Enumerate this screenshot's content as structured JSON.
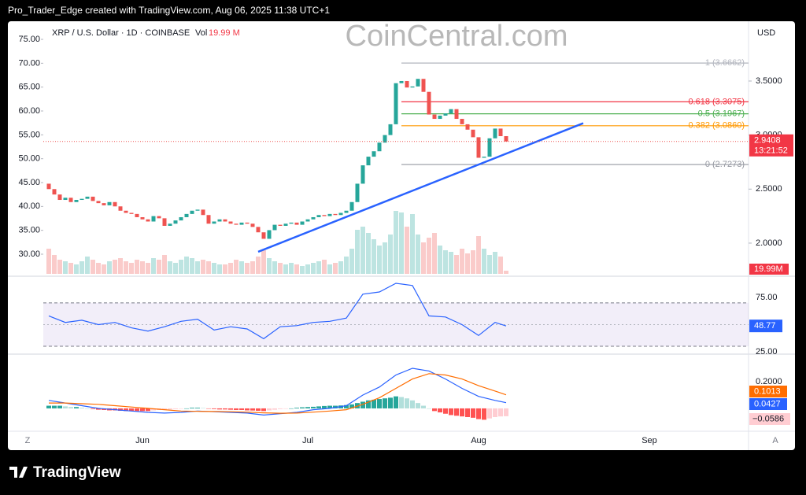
{
  "header": {
    "text": "Pro_Trader_Edge created with TradingView.com, Aug 06, 2025 11:38 UTC+1"
  },
  "footer": {
    "brand": "TradingView"
  },
  "chart_data": {
    "type": "candlestick",
    "legend_title": "XRP / U.S. Dollar · 1D · COINBASE",
    "watermark": "CoinCentral.com",
    "currency": "USD",
    "corner_labels": [
      "Z",
      "A"
    ],
    "xlim": [
      -1,
      127
    ],
    "xticks": [
      {
        "value": 17,
        "label": "Jun"
      },
      {
        "value": 47,
        "label": "Jul"
      },
      {
        "value": 78,
        "label": "Aug"
      },
      {
        "value": 109,
        "label": "Sep"
      }
    ],
    "ylim": [
      1.701,
      4.046
    ],
    "yticks": [
      {
        "value": 2,
        "label": "2.0000"
      },
      {
        "value": 2.5,
        "label": "2.5000"
      },
      {
        "value": 3,
        "label": "3.0000"
      },
      {
        "value": 3.5,
        "label": "3.5000"
      }
    ],
    "y2lim": [
      25.55,
      78.63
    ],
    "y2ticks": [
      {
        "value": 30,
        "label": "30.00"
      },
      {
        "value": 35,
        "label": "35.00"
      },
      {
        "value": 40,
        "label": "40.00"
      },
      {
        "value": 45,
        "label": "45.00"
      },
      {
        "value": 50,
        "label": "50.00"
      },
      {
        "value": 55,
        "label": "55.00"
      },
      {
        "value": 60,
        "label": "60.00"
      },
      {
        "value": 65,
        "label": "65.00"
      },
      {
        "value": 70,
        "label": "70.00"
      },
      {
        "value": 75,
        "label": "75.00"
      }
    ],
    "up_color": "#26a69a",
    "down_color": "#ef5350",
    "open": [
      2.55,
      2.5,
      2.45,
      2.4,
      2.42,
      2.38,
      2.4,
      2.41,
      2.43,
      2.39,
      2.37,
      2.35,
      2.38,
      2.34,
      2.3,
      2.28,
      2.27,
      2.24,
      2.22,
      2.2,
      2.25,
      2.23,
      2.16,
      2.18,
      2.21,
      2.24,
      2.27,
      2.3,
      2.31,
      2.26,
      2.18,
      2.2,
      2.22,
      2.2,
      2.18,
      2.17,
      2.19,
      2.18,
      2.15,
      2.1,
      2.04,
      2.12,
      2.17,
      2.16,
      2.18,
      2.19,
      2.17,
      2.2,
      2.22,
      2.24,
      2.26,
      2.25,
      2.27,
      2.26,
      2.28,
      2.3,
      2.38,
      2.55,
      2.72,
      2.8,
      2.85,
      2.93,
      3.0,
      3.1,
      3.48,
      3.5,
      3.44,
      3.45,
      3.52,
      3.4,
      3.19,
      3.15,
      3.18,
      3.2,
      3.24,
      3.15,
      3.1,
      3.05,
      2.98,
      2.79,
      2.8,
      2.97,
      3.06,
      2.99
    ],
    "close": [
      2.5,
      2.45,
      2.4,
      2.42,
      2.38,
      2.4,
      2.41,
      2.43,
      2.39,
      2.37,
      2.35,
      2.38,
      2.34,
      2.3,
      2.28,
      2.27,
      2.24,
      2.22,
      2.2,
      2.25,
      2.23,
      2.16,
      2.18,
      2.21,
      2.24,
      2.27,
      2.3,
      2.31,
      2.26,
      2.18,
      2.2,
      2.22,
      2.2,
      2.18,
      2.17,
      2.19,
      2.18,
      2.15,
      2.1,
      2.04,
      2.12,
      2.17,
      2.16,
      2.18,
      2.19,
      2.17,
      2.2,
      2.22,
      2.24,
      2.26,
      2.25,
      2.27,
      2.26,
      2.28,
      2.3,
      2.38,
      2.55,
      2.72,
      2.8,
      2.85,
      2.93,
      3.0,
      3.1,
      3.48,
      3.5,
      3.44,
      3.45,
      3.52,
      3.4,
      3.19,
      3.15,
      3.18,
      3.2,
      3.24,
      3.15,
      3.1,
      3.05,
      2.98,
      2.79,
      2.8,
      2.97,
      3.06,
      2.99,
      2.9408
    ],
    "countdown": "13:21:52",
    "fib_levels": [
      {
        "label": "1 (3.6662)",
        "price": 3.6662,
        "color": "#b2b5be"
      },
      {
        "label": "0.618 (3.3075)",
        "price": 3.3075,
        "color": "#f23645"
      },
      {
        "label": "0.5 (3.1967)",
        "price": 3.1967,
        "color": "#4caf50"
      },
      {
        "label": "0.382 (3.0860)",
        "price": 3.086,
        "color": "#ff9800"
      },
      {
        "label": "0 (2.7273)",
        "price": 2.7273,
        "color": "#9598a1"
      }
    ],
    "fib_start": 64,
    "trendline": {
      "x": [
        38,
        97
      ],
      "y": [
        1.92,
        3.11
      ],
      "color": "#2962ff"
    },
    "volume": {
      "name": "Vol",
      "legend_label": "19.99 M",
      "axis_label": "19.99M",
      "vlim": [
        0,
        500
      ],
      "values": [
        160,
        120,
        90,
        80,
        70,
        60,
        80,
        110,
        90,
        70,
        60,
        80,
        90,
        100,
        80,
        70,
        90,
        80,
        70,
        100,
        90,
        120,
        80,
        70,
        90,
        110,
        100,
        80,
        90,
        80,
        70,
        60,
        60,
        70,
        90,
        80,
        70,
        80,
        110,
        150,
        100,
        80,
        70,
        60,
        70,
        60,
        50,
        60,
        70,
        80,
        90,
        60,
        70,
        80,
        110,
        160,
        280,
        300,
        260,
        220,
        180,
        200,
        250,
        400,
        390,
        300,
        380,
        250,
        200,
        230,
        260,
        180,
        150,
        140,
        120,
        160,
        130,
        150,
        240,
        160,
        120,
        140,
        110,
        19.99
      ]
    },
    "rsi": {
      "ylim": [
        22.8,
        93.8
      ],
      "yticks": [
        {
          "value": 75,
          "label": "75.00"
        },
        {
          "value": 25,
          "label": "25.00"
        }
      ],
      "band": [
        30,
        70
      ],
      "midline": 50,
      "color": "#2962ff",
      "x": [
        0,
        3,
        6,
        9,
        12,
        15,
        18,
        21,
        24,
        27,
        30,
        33,
        36,
        39,
        42,
        45,
        48,
        51,
        54,
        57,
        60,
        63,
        66,
        69,
        72,
        75,
        78,
        81,
        83
      ],
      "values": [
        58,
        52,
        54,
        50,
        52,
        47,
        44,
        48,
        53,
        55,
        45,
        48,
        46,
        37,
        48,
        49,
        52,
        53,
        56,
        78,
        80,
        88,
        86,
        58,
        57,
        50,
        40,
        52,
        48.77
      ]
    },
    "macd": {
      "ylim": [
        -0.171,
        0.394
      ],
      "yticks": [
        {
          "value": 0.2,
          "label": "0.2000"
        }
      ],
      "macd_color": "#2962ff",
      "signal_color": "#ff6d00",
      "x": [
        0,
        3,
        6,
        9,
        12,
        15,
        18,
        21,
        24,
        27,
        30,
        33,
        36,
        39,
        42,
        45,
        48,
        51,
        54,
        57,
        60,
        63,
        66,
        69,
        72,
        75,
        78,
        81,
        83
      ],
      "macd": [
        0.06,
        0.04,
        0.02,
        0.0,
        -0.01,
        -0.02,
        -0.03,
        -0.035,
        -0.03,
        -0.02,
        -0.025,
        -0.03,
        -0.035,
        -0.05,
        -0.04,
        -0.03,
        -0.01,
        0.0,
        0.02,
        0.1,
        0.16,
        0.25,
        0.3,
        0.28,
        0.22,
        0.15,
        0.09,
        0.06,
        0.0427
      ],
      "signal": [
        0.04,
        0.04,
        0.035,
        0.03,
        0.02,
        0.01,
        0.0,
        -0.01,
        -0.02,
        -0.022,
        -0.023,
        -0.025,
        -0.028,
        -0.033,
        -0.036,
        -0.035,
        -0.028,
        -0.02,
        -0.01,
        0.03,
        0.08,
        0.15,
        0.22,
        0.26,
        0.25,
        0.22,
        0.17,
        0.13,
        0.1013
      ],
      "hist": [
        0.02,
        0.02,
        0.02,
        0.015,
        0.01,
        0.01,
        0.005,
        0.0,
        -0.005,
        -0.01,
        -0.012,
        -0.015,
        -0.015,
        -0.018,
        -0.02,
        -0.02,
        -0.02,
        -0.02,
        -0.02,
        -0.015,
        -0.012,
        -0.01,
        -0.008,
        -0.005,
        -0.002,
        0.0,
        0.005,
        0.005,
        0.003,
        -0.002,
        -0.005,
        -0.008,
        -0.008,
        -0.01,
        -0.012,
        -0.012,
        -0.015,
        -0.016,
        -0.018,
        -0.02,
        -0.015,
        -0.01,
        -0.005,
        -0.002,
        0.0,
        0.005,
        0.008,
        0.01,
        0.012,
        0.015,
        0.018,
        0.02,
        0.02,
        0.022,
        0.025,
        0.03,
        0.04,
        0.05,
        0.06,
        0.065,
        0.07,
        0.075,
        0.08,
        0.09,
        0.085,
        0.075,
        0.06,
        0.04,
        0.02,
        0.0,
        -0.02,
        -0.03,
        -0.04,
        -0.05,
        -0.055,
        -0.06,
        -0.065,
        -0.07,
        -0.08,
        -0.085,
        -0.075,
        -0.065,
        -0.06,
        -0.0586
      ],
      "hist_last_label": "−0.0586"
    }
  }
}
